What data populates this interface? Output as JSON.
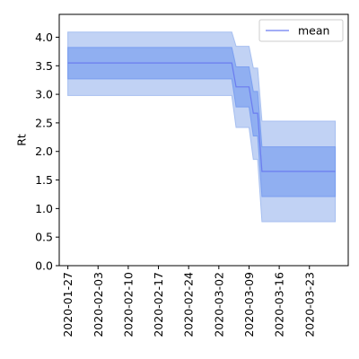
{
  "chart_data": {
    "type": "area",
    "title": "",
    "xlabel": "",
    "ylabel": "Rt",
    "x_tick_labels": [
      "2020-01-27",
      "2020-02-03",
      "2020-02-10",
      "2020-02-17",
      "2020-02-24",
      "2020-03-02",
      "2020-03-09",
      "2020-03-16",
      "2020-03-23"
    ],
    "y_tick_labels": [
      "0.0",
      "0.5",
      "1.0",
      "1.5",
      "2.0",
      "2.5",
      "3.0",
      "3.5",
      "4.0"
    ],
    "xlim": [
      "2020-01-25",
      "2020-04-01"
    ],
    "ylim": [
      0,
      4.4
    ],
    "grid": false,
    "legend_position": "top-right",
    "x": [
      "2020-01-27",
      "2020-03-05",
      "2020-03-06",
      "2020-03-09",
      "2020-03-10",
      "2020-03-11",
      "2020-03-12",
      "2020-03-29"
    ],
    "series": [
      {
        "name": "mean",
        "color": "#6a7cf0",
        "values": [
          3.55,
          3.55,
          3.13,
          3.13,
          2.67,
          2.67,
          1.65,
          1.65
        ]
      }
    ],
    "bands": [
      {
        "level": "outer",
        "color": "#a6bff0",
        "lower": [
          2.98,
          2.98,
          2.42,
          2.42,
          1.86,
          1.86,
          0.77,
          0.77
        ],
        "upper": [
          4.09,
          4.09,
          3.84,
          3.84,
          3.46,
          3.46,
          2.53,
          2.53
        ]
      },
      {
        "level": "inner",
        "color": "#7b9ff0",
        "lower": [
          3.27,
          3.27,
          2.78,
          2.78,
          2.27,
          2.27,
          1.21,
          1.21
        ],
        "upper": [
          3.82,
          3.82,
          3.48,
          3.48,
          3.05,
          3.05,
          2.08,
          2.08
        ]
      }
    ]
  }
}
